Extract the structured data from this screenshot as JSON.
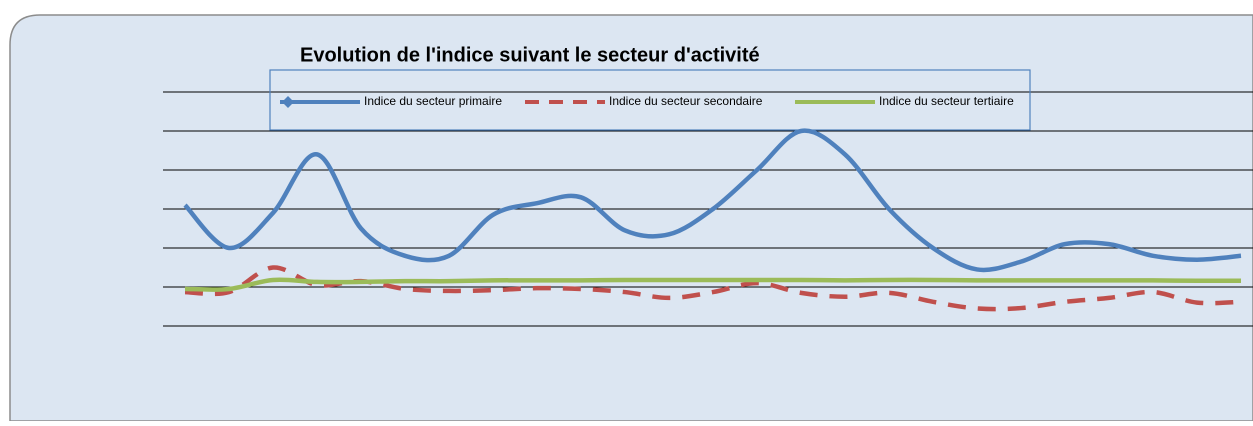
{
  "chart_data": {
    "type": "line",
    "title": "Evolution de l'indice suivant le secteur d'activité",
    "categories": [
      null,
      null,
      null,
      null,
      null,
      null,
      null,
      null,
      null,
      null,
      null,
      null,
      null,
      null,
      null,
      null,
      null,
      null,
      null,
      null,
      null,
      null,
      null,
      null,
      null
    ],
    "series": [
      {
        "name": "Indice du secteur primaire",
        "color": "#4f81bd",
        "style": "solid",
        "values": [
          3.1,
          2.0,
          2.9,
          4.4,
          2.5,
          1.8,
          1.8,
          2.85,
          3.15,
          3.3,
          2.45,
          2.35,
          3.0,
          4.0,
          5.0,
          4.4,
          3.0,
          2.0,
          1.45,
          1.65,
          2.1,
          2.1,
          1.8,
          1.7,
          1.8
        ]
      },
      {
        "name": "Indice du secteur secondaire",
        "color": "#c0504d",
        "style": "dashed",
        "values": [
          0.87,
          0.87,
          1.5,
          1.05,
          1.15,
          0.95,
          0.9,
          0.92,
          0.97,
          0.95,
          0.87,
          0.72,
          0.87,
          1.1,
          0.85,
          0.75,
          0.85,
          0.62,
          0.45,
          0.46,
          0.62,
          0.72,
          0.87,
          0.6,
          0.62
        ]
      },
      {
        "name": "Indice du secteur tertiaire",
        "color": "#9bbb59",
        "style": "solid",
        "values": [
          0.95,
          0.95,
          1.18,
          1.13,
          1.13,
          1.15,
          1.15,
          1.17,
          1.17,
          1.17,
          1.18,
          1.18,
          1.18,
          1.18,
          1.18,
          1.17,
          1.18,
          1.18,
          1.17,
          1.17,
          1.17,
          1.17,
          1.17,
          1.16,
          1.16
        ]
      }
    ],
    "ylim": [
      0,
      6
    ],
    "yticks": [
      0,
      1,
      2,
      3,
      4,
      5,
      6
    ],
    "grid": true
  }
}
